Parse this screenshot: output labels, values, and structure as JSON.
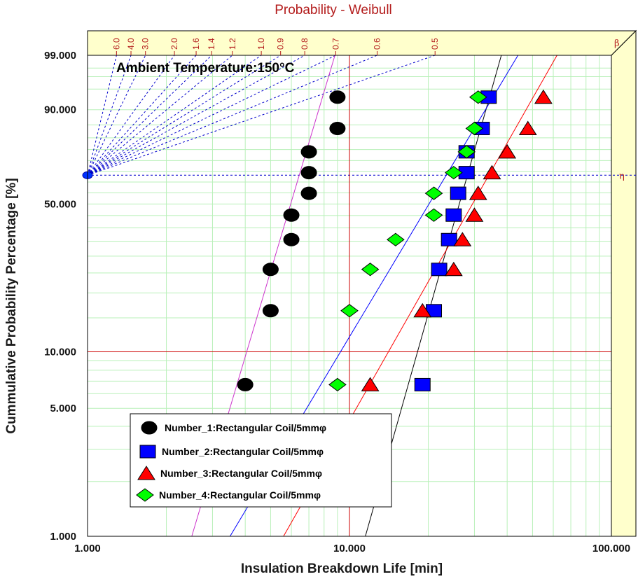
{
  "chart_data": {
    "type": "scatter",
    "title": "Probability - Weibull",
    "xlabel": "Insulation Breakdown Life [min]",
    "ylabel": "Cummulative Probability Percentage [%]",
    "x_scale": "log",
    "xlim": [
      1,
      100
    ],
    "y_scale": "weibull",
    "ylim": [
      1,
      99
    ],
    "x_ticks": [
      {
        "value": 1,
        "label": "1.000"
      },
      {
        "value": 10,
        "label": "10.000"
      },
      {
        "value": 100,
        "label": "100.000"
      }
    ],
    "y_ticks": [
      {
        "value": 1,
        "label": "1.000"
      },
      {
        "value": 5,
        "label": "5.000"
      },
      {
        "value": 10,
        "label": "10.000"
      },
      {
        "value": 50,
        "label": "50.000"
      },
      {
        "value": 90,
        "label": "90.000"
      },
      {
        "value": 99,
        "label": "99.000"
      }
    ],
    "beta_scale": {
      "label": "β",
      "ticks": [
        "6.0",
        "4.0",
        "3.0",
        "2.0",
        "1.6",
        "1.4",
        "1.2",
        "1.0",
        "0.9",
        "0.8",
        "0.7",
        "0.6",
        "0.5"
      ]
    },
    "eta_label": "η",
    "annotation": "Ambient Temperature:150°C",
    "grid": true,
    "legend_position": "bottom-left",
    "series": [
      {
        "name": "Number_1:Rectangular Coil/5mmφ",
        "marker": "ellipse",
        "color": "#000000",
        "points": [
          [
            4.0,
            6.7
          ],
          [
            5.0,
            16.3
          ],
          [
            5.0,
            26.0
          ],
          [
            6.0,
            35.6
          ],
          [
            6.0,
            45.2
          ],
          [
            7.0,
            54.8
          ],
          [
            7.0,
            64.4
          ],
          [
            7.0,
            74.0
          ],
          [
            9.0,
            83.7
          ],
          [
            9.0,
            93.3
          ]
        ],
        "fit": [
          [
            2.5,
            1.0
          ],
          [
            8.8,
            99.0
          ]
        ]
      },
      {
        "name": "Number_2:Rectangular Coil/5mmφ",
        "marker": "square",
        "color": "#0000ff",
        "points": [
          [
            19.0,
            6.7
          ],
          [
            21.0,
            16.3
          ],
          [
            22.0,
            26.0
          ],
          [
            24.0,
            35.6
          ],
          [
            25.0,
            45.2
          ],
          [
            26.0,
            54.8
          ],
          [
            28.0,
            64.4
          ],
          [
            28.0,
            74.0
          ],
          [
            32.0,
            83.7
          ],
          [
            34.0,
            93.3
          ]
        ],
        "fit": [
          [
            11.5,
            1.0
          ],
          [
            38.0,
            99.0
          ]
        ]
      },
      {
        "name": "Number_3:Rectangular Coil/5mmφ",
        "marker": "triangle",
        "color": "#ff0000",
        "points": [
          [
            12.0,
            6.7
          ],
          [
            19.0,
            16.3
          ],
          [
            25.0,
            26.0
          ],
          [
            27.0,
            35.6
          ],
          [
            30.0,
            45.2
          ],
          [
            31.0,
            54.8
          ],
          [
            35.0,
            64.4
          ],
          [
            40.0,
            74.0
          ],
          [
            48.0,
            83.7
          ],
          [
            55.0,
            93.3
          ]
        ],
        "fit": [
          [
            5.6,
            1.0
          ],
          [
            62.0,
            99.0
          ]
        ]
      },
      {
        "name": "Number_4:Rectangular Coil/5mmφ",
        "marker": "diamond",
        "color": "#00ff00",
        "points": [
          [
            9.0,
            6.7
          ],
          [
            10.0,
            16.3
          ],
          [
            12.0,
            26.0
          ],
          [
            15.0,
            35.6
          ],
          [
            21.0,
            45.2
          ],
          [
            21.0,
            54.8
          ],
          [
            25.0,
            64.4
          ],
          [
            28.0,
            74.0
          ],
          [
            30.0,
            83.7
          ],
          [
            31.0,
            93.3
          ]
        ],
        "fit": [
          [
            3.5,
            1.0
          ],
          [
            44.0,
            99.0
          ]
        ]
      }
    ],
    "eta_probability": 63.2,
    "red_reference": {
      "x": 10,
      "y": 10
    }
  }
}
